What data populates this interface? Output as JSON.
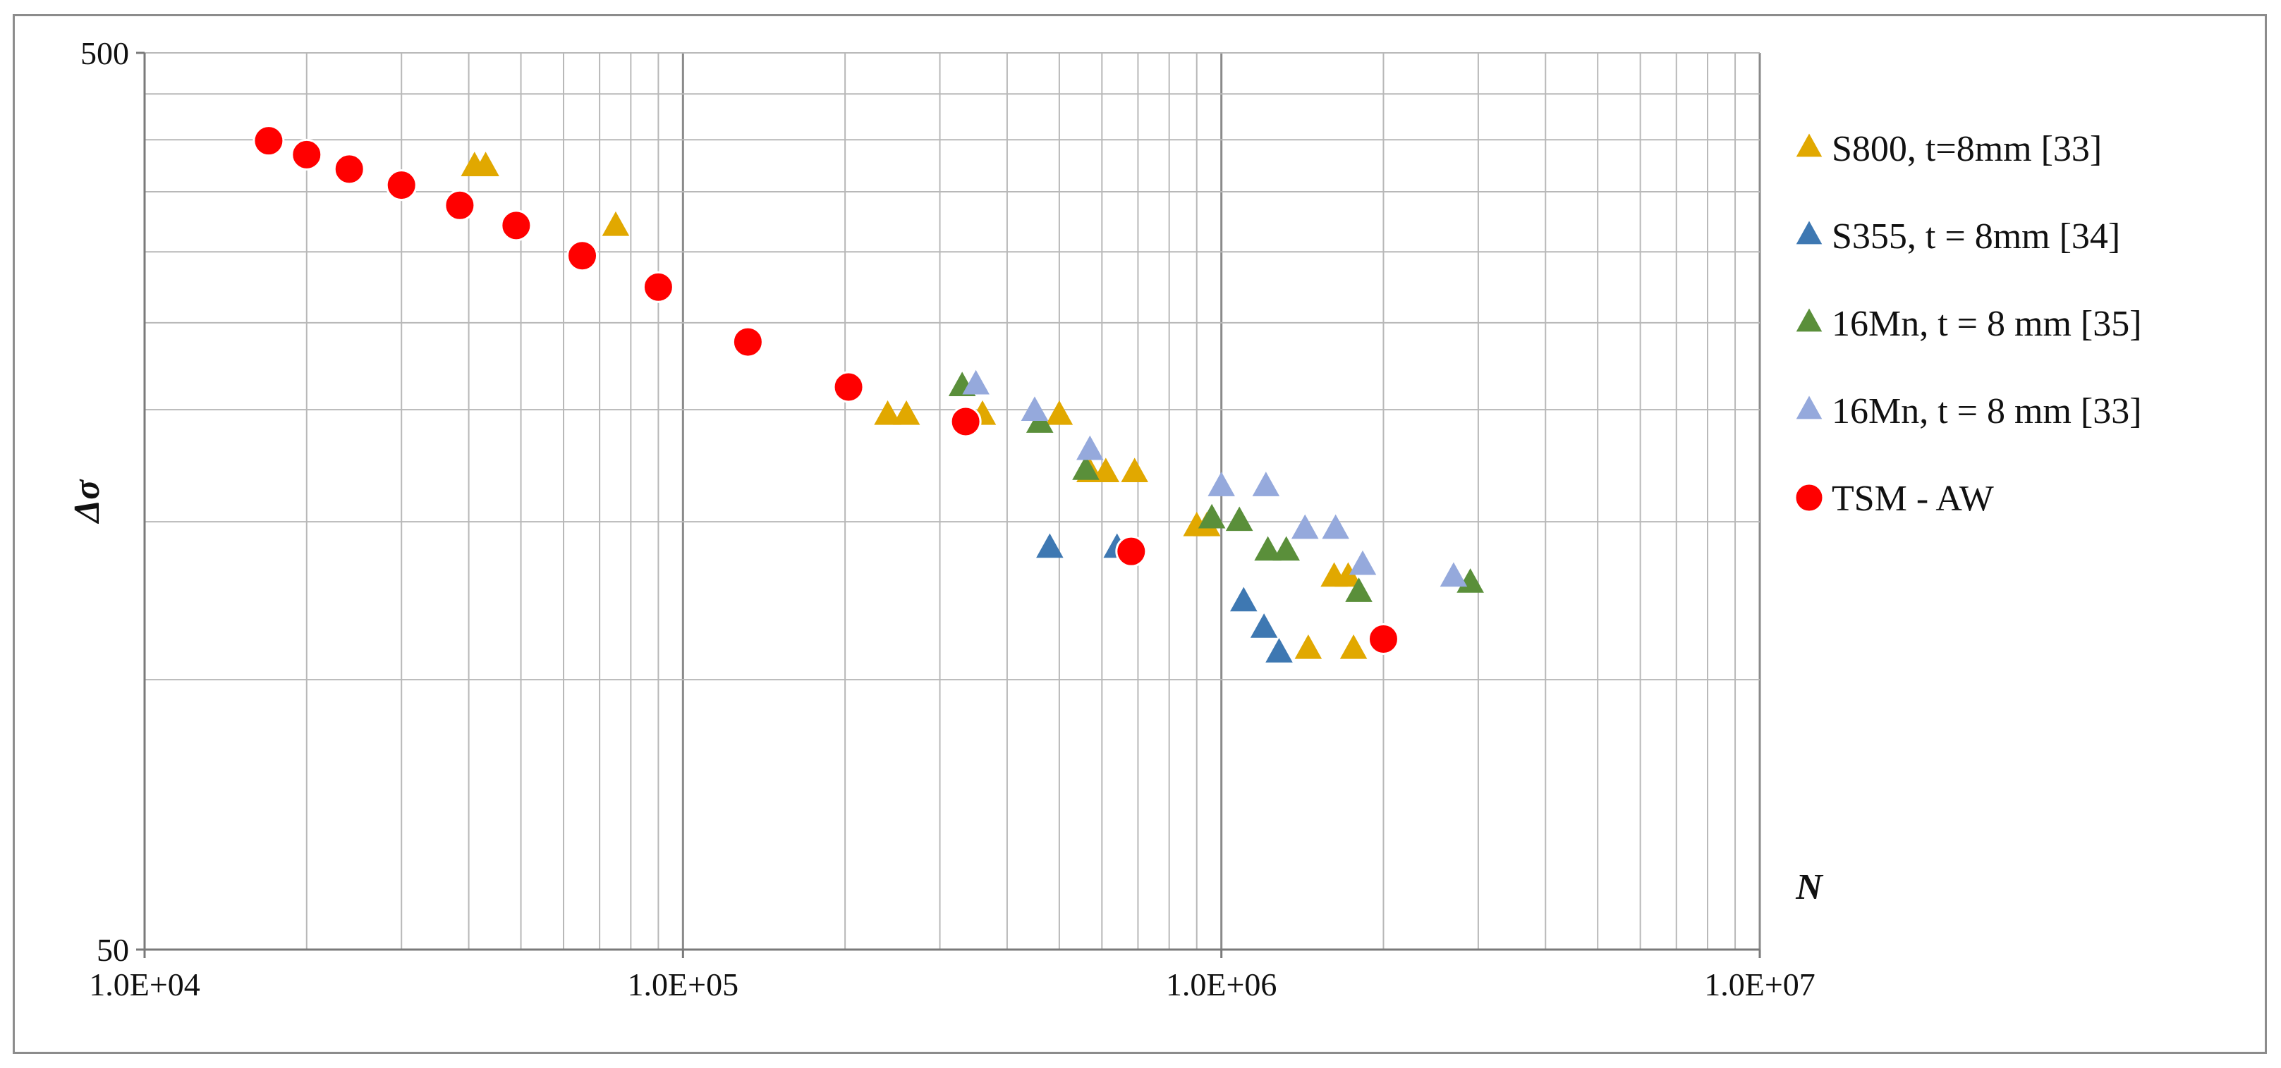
{
  "chart_data": {
    "type": "scatter",
    "title": "",
    "xlabel": "N",
    "ylabel": "Δσ",
    "x_scale": "log",
    "y_scale": "log",
    "xlim": [
      10000,
      10000000
    ],
    "ylim": [
      50,
      500
    ],
    "x_tick_labels": [
      {
        "value": 10000,
        "label": "1.0E+04"
      },
      {
        "value": 100000,
        "label": "1.0E+05"
      },
      {
        "value": 1000000,
        "label": "1.0E+06"
      },
      {
        "value": 10000000,
        "label": "1.0E+07"
      }
    ],
    "y_tick_labels": [
      {
        "value": 50,
        "label": "50"
      },
      {
        "value": 500,
        "label": "500"
      }
    ],
    "x_gridlines": [
      10000,
      20000,
      30000,
      40000,
      50000,
      60000,
      70000,
      80000,
      90000,
      100000,
      200000,
      300000,
      400000,
      500000,
      600000,
      700000,
      800000,
      900000,
      1000000,
      2000000,
      3000000,
      4000000,
      5000000,
      6000000,
      7000000,
      8000000,
      9000000,
      10000000
    ],
    "y_gridlines": [
      50,
      100,
      150,
      200,
      250,
      300,
      350,
      400,
      450,
      500
    ],
    "grid": true,
    "legend_position": "right",
    "series": [
      {
        "name": "S800, t=8mm [33]",
        "marker": "triangle",
        "color": "#E1A800",
        "points": [
          [
            41000,
            373
          ],
          [
            43000,
            373
          ],
          [
            75000,
            320
          ],
          [
            240000,
            197
          ],
          [
            260000,
            197
          ],
          [
            360000,
            197
          ],
          [
            500000,
            197
          ],
          [
            570000,
            170
          ],
          [
            610000,
            170
          ],
          [
            690000,
            170
          ],
          [
            900000,
            148
          ],
          [
            940000,
            148
          ],
          [
            1450000,
            108
          ],
          [
            1620000,
            130
          ],
          [
            1720000,
            130
          ],
          [
            1760000,
            108
          ]
        ]
      },
      {
        "name": "S355, t = 8mm [34]",
        "marker": "triangle",
        "color": "#3E78B2",
        "points": [
          [
            480000,
            140
          ],
          [
            640000,
            140
          ],
          [
            1100000,
            122
          ],
          [
            1200000,
            114
          ],
          [
            1280000,
            107
          ]
        ]
      },
      {
        "name": "16Mn, t = 8 mm [35]",
        "marker": "triangle",
        "color": "#5A8F3A",
        "points": [
          [
            330000,
            212
          ],
          [
            460000,
            193
          ],
          [
            560000,
            171
          ],
          [
            960000,
            151
          ],
          [
            1080000,
            150
          ],
          [
            1220000,
            139
          ],
          [
            1320000,
            139
          ],
          [
            1800000,
            125
          ],
          [
            2900000,
            128
          ]
        ]
      },
      {
        "name": "16Mn, t = 8 mm [33]",
        "marker": "triangle",
        "color": "#95A9DC",
        "points": [
          [
            350000,
            213
          ],
          [
            450000,
            199
          ],
          [
            570000,
            180
          ],
          [
            1000000,
            164
          ],
          [
            1210000,
            164
          ],
          [
            1430000,
            147
          ],
          [
            1630000,
            147
          ],
          [
            1830000,
            134
          ],
          [
            2700000,
            130
          ]
        ]
      },
      {
        "name": "TSM - AW",
        "marker": "circle",
        "color": "#FF0000",
        "points": [
          [
            17000,
            399
          ],
          [
            20000,
            385
          ],
          [
            24000,
            371
          ],
          [
            30000,
            356
          ],
          [
            38500,
            338
          ],
          [
            49000,
            321
          ],
          [
            65000,
            297
          ],
          [
            90000,
            274
          ],
          [
            132000,
            238
          ],
          [
            203000,
            212
          ],
          [
            335000,
            194
          ],
          [
            680000,
            139
          ],
          [
            2000000,
            111
          ]
        ]
      }
    ]
  }
}
